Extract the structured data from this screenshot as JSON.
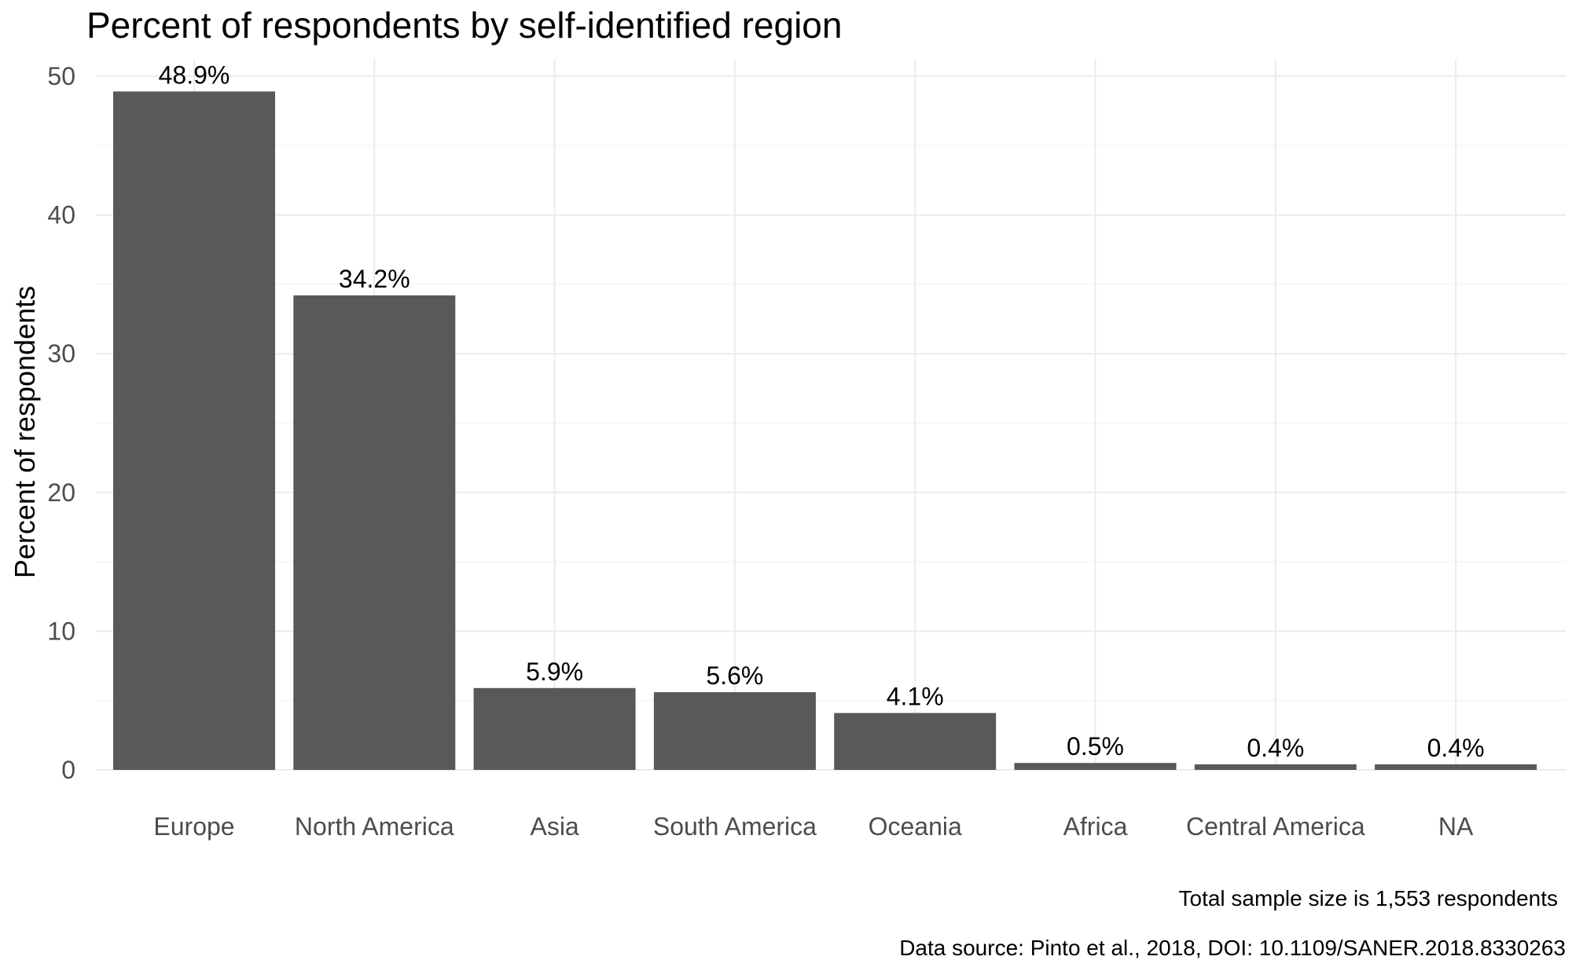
{
  "chart_data": {
    "type": "bar",
    "title": "Percent of respondents by self-identified region",
    "xlabel": "",
    "ylabel": "Percent of respondents",
    "categories": [
      "Europe",
      "North America",
      "Asia",
      "South America",
      "Oceania",
      "Africa",
      "Central America",
      "NA"
    ],
    "values": [
      48.9,
      34.2,
      5.9,
      5.6,
      4.1,
      0.5,
      0.4,
      0.4
    ],
    "data_labels": [
      "48.9%",
      "34.2%",
      "5.9%",
      "5.6%",
      "4.1%",
      "0.5%",
      "0.4%",
      "0.4%"
    ],
    "ylim": [
      0,
      50
    ],
    "yticks": [
      0,
      10,
      20,
      30,
      40,
      50
    ],
    "ytick_labels": [
      "0",
      "10",
      "20",
      "30",
      "40",
      "50"
    ],
    "grid": true,
    "captions": [
      "Total sample size is 1,553 respondents",
      "Data source: Pinto et al., 2018, DOI: 10.1109/SANER.2018.8330263"
    ],
    "colors": {
      "bar": "#595959",
      "grid_major": "#ebebeb",
      "grid_minor": "#f5f5f5",
      "tick_text": "#4d4d4d",
      "text": "#000000"
    }
  }
}
